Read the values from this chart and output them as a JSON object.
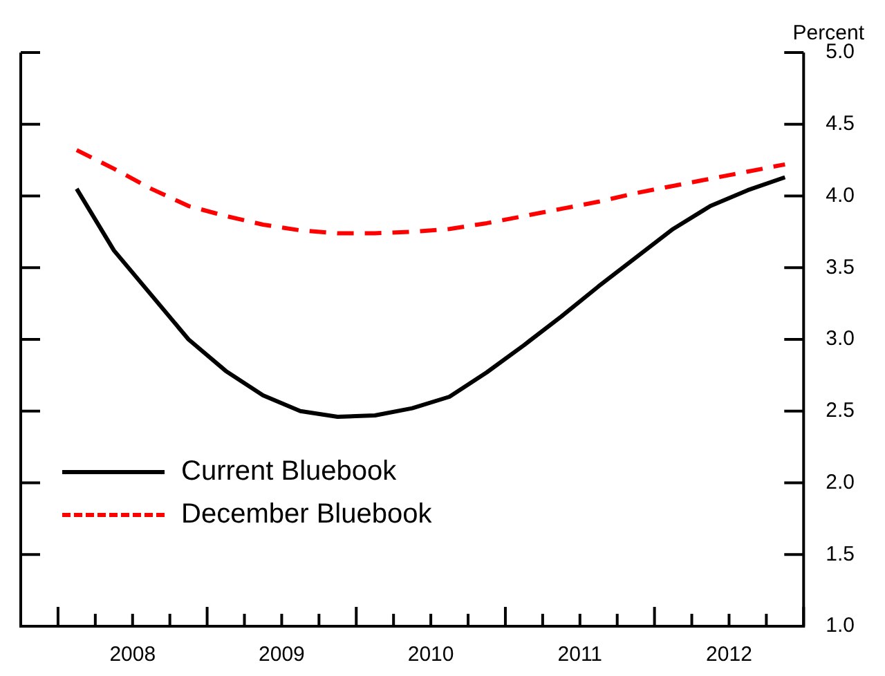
{
  "chart_data": {
    "type": "line",
    "ylabel": "Percent",
    "x": [
      2008.125,
      2008.375,
      2008.625,
      2008.875,
      2009.125,
      2009.375,
      2009.625,
      2009.875,
      2010.125,
      2010.375,
      2010.625,
      2010.875,
      2011.125,
      2011.375,
      2011.625,
      2011.875,
      2012.125,
      2012.375,
      2012.625,
      2012.875
    ],
    "series": [
      {
        "name": "Current Bluebook",
        "color": "#000000",
        "line_style": "solid",
        "values": [
          4.05,
          3.62,
          3.31,
          3.0,
          2.78,
          2.61,
          2.5,
          2.46,
          2.47,
          2.52,
          2.6,
          2.77,
          2.96,
          3.16,
          3.37,
          3.57,
          3.77,
          3.93,
          4.04,
          4.13
        ]
      },
      {
        "name": "December Bluebook",
        "color": "#ff0000",
        "line_style": "dashed",
        "values": [
          4.32,
          4.19,
          4.05,
          3.93,
          3.86,
          3.8,
          3.76,
          3.74,
          3.74,
          3.75,
          3.77,
          3.81,
          3.86,
          3.91,
          3.96,
          4.02,
          4.07,
          4.12,
          4.17,
          4.22
        ]
      }
    ],
    "xlim": [
      2007.75,
      2013
    ],
    "xticks": [
      {
        "value": 2007.75,
        "label": null
      },
      {
        "value": 2008,
        "label": null
      },
      {
        "value": 2008.25,
        "label": null
      },
      {
        "value": 2008.5,
        "label": "2008"
      },
      {
        "value": 2008.75,
        "label": null
      },
      {
        "value": 2009,
        "label": null
      },
      {
        "value": 2009.25,
        "label": null
      },
      {
        "value": 2009.5,
        "label": "2009"
      },
      {
        "value": 2009.75,
        "label": null
      },
      {
        "value": 2010,
        "label": null
      },
      {
        "value": 2010.25,
        "label": null
      },
      {
        "value": 2010.5,
        "label": "2010"
      },
      {
        "value": 2010.75,
        "label": null
      },
      {
        "value": 2011,
        "label": null
      },
      {
        "value": 2011.25,
        "label": null
      },
      {
        "value": 2011.5,
        "label": "2011"
      },
      {
        "value": 2011.75,
        "label": null
      },
      {
        "value": 2012,
        "label": null
      },
      {
        "value": 2012.25,
        "label": null
      },
      {
        "value": 2012.5,
        "label": "2012"
      },
      {
        "value": 2012.75,
        "label": null
      },
      {
        "value": 2013,
        "label": null
      }
    ],
    "ylim": [
      1,
      5
    ],
    "yticks": [
      {
        "value": 1,
        "label": "1.0"
      },
      1.5,
      {
        "value": 2,
        "label": "2.0"
      },
      2.5,
      {
        "value": 3,
        "label": "3.0"
      },
      3.5,
      {
        "value": 4,
        "label": "4.0"
      },
      4.5,
      {
        "value": 5,
        "label": "5.0"
      }
    ],
    "legend": "bottom left",
    "marker": "none"
  }
}
